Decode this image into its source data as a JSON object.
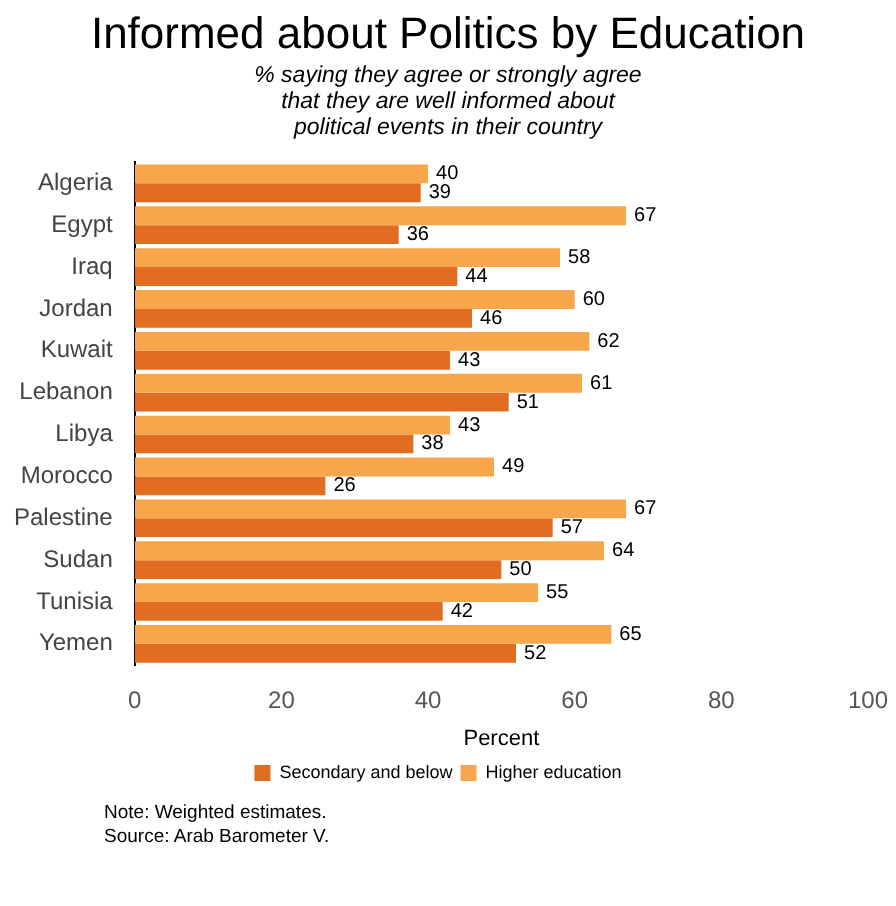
{
  "chart_data": {
    "type": "bar",
    "orientation": "horizontal",
    "title": "Informed about Politics by Education",
    "subtitle": "% saying they agree or strongly agree\nthat they are well informed about\npolitical events in their country",
    "xlabel": "Percent",
    "categories": [
      "Algeria",
      "Egypt",
      "Iraq",
      "Jordan",
      "Kuwait",
      "Lebanon",
      "Libya",
      "Morocco",
      "Palestine",
      "Sudan",
      "Tunisia",
      "Yemen"
    ],
    "series": [
      {
        "name": "Higher education",
        "color": "#f7a64c",
        "values": [
          40,
          67,
          58,
          60,
          62,
          61,
          43,
          49,
          67,
          64,
          55,
          65
        ]
      },
      {
        "name": "Secondary and below",
        "color": "#e06d22",
        "values": [
          39,
          36,
          44,
          46,
          43,
          51,
          38,
          26,
          57,
          50,
          42,
          52
        ]
      }
    ],
    "xlim": [
      0,
      100
    ],
    "xticks": [
      0,
      20,
      40,
      60,
      80,
      100
    ],
    "grid": false,
    "legend": "bottom",
    "data_labels": true,
    "annotations": [
      "Note: Weighted estimates.",
      "Source: Arab Barometer V."
    ]
  }
}
